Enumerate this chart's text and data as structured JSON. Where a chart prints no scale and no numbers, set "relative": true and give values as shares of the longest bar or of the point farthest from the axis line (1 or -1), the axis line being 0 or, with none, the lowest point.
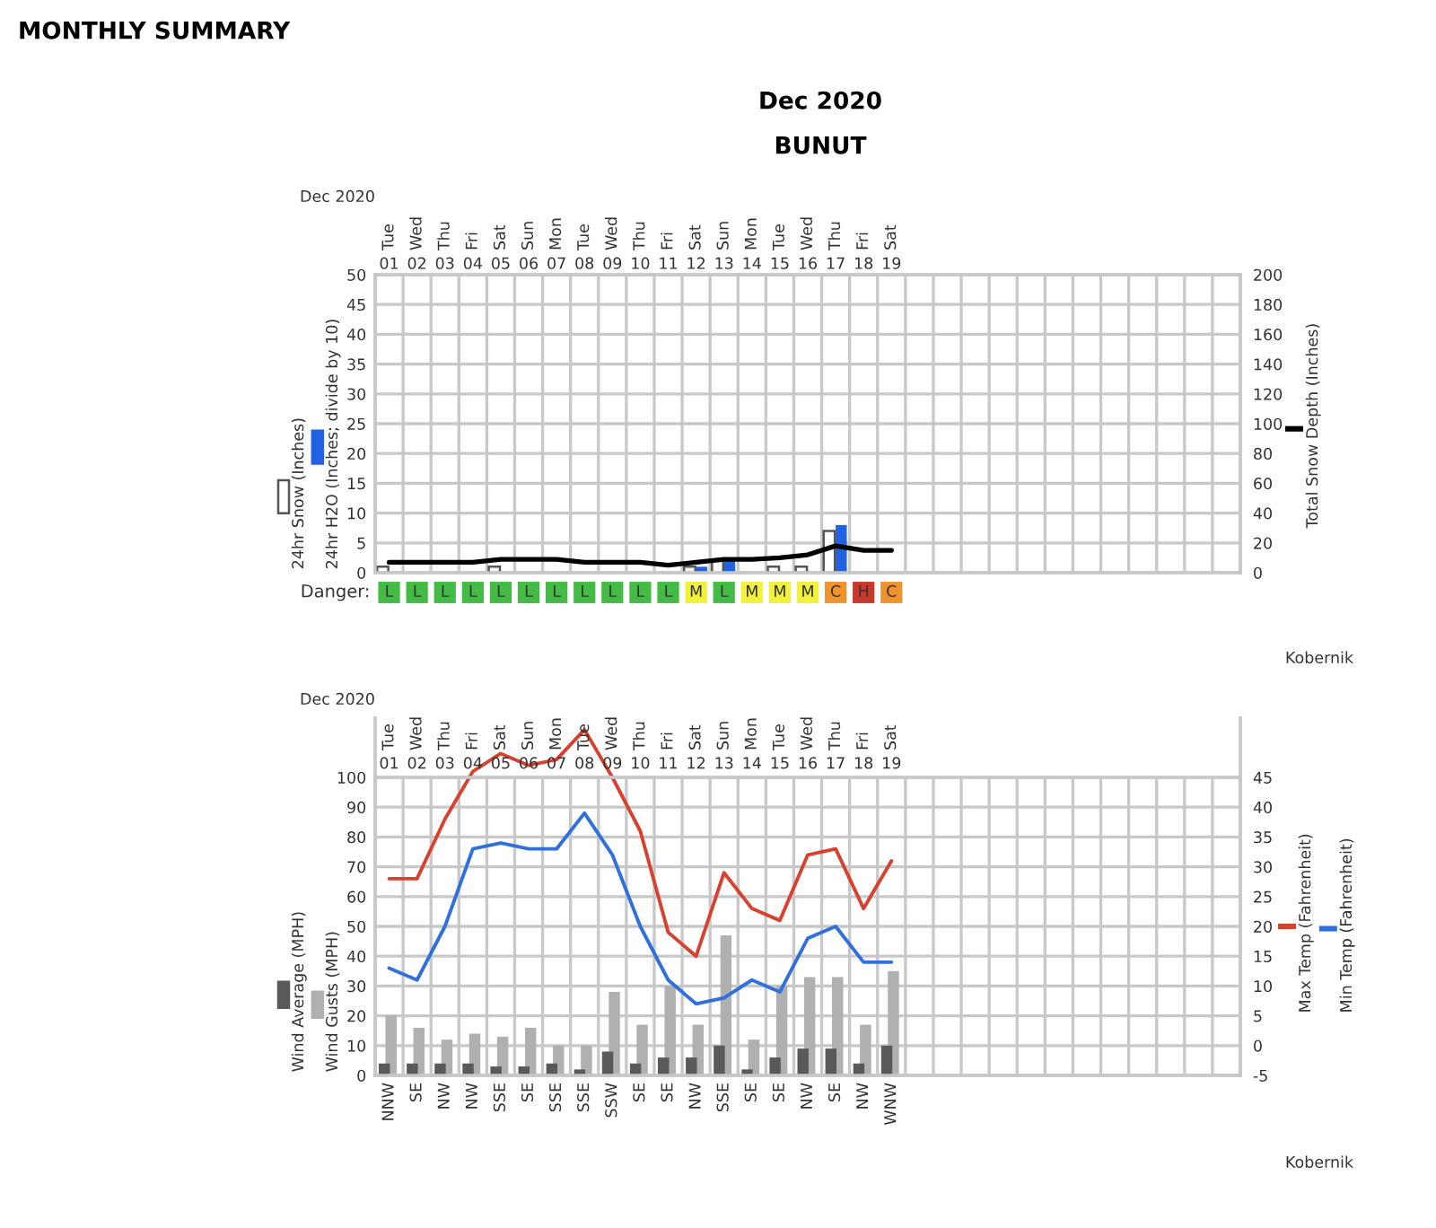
{
  "chart_data": [
    {
      "type": "bar",
      "title": "Dec 2020",
      "subtitle": "BUNUT",
      "categories": [
        "01",
        "02",
        "03",
        "04",
        "05",
        "06",
        "07",
        "08",
        "09",
        "10",
        "11",
        "12",
        "13",
        "14",
        "15",
        "16",
        "17",
        "18",
        "19",
        null,
        null,
        null,
        null,
        null,
        null,
        null,
        null,
        null,
        null,
        null,
        null
      ],
      "series": [
        {
          "name": "24hr Snow (Inches)",
          "type": "bar",
          "color": "#ffffff",
          "values": [
            1,
            0,
            0,
            0,
            1,
            0,
            0,
            0,
            0,
            0,
            0,
            1,
            2,
            0,
            1,
            1,
            7,
            0,
            0,
            null,
            null,
            null,
            null,
            null,
            null,
            null,
            null,
            null,
            null,
            null,
            null
          ]
        },
        {
          "name": "24hr H2O (Inches; divide by 10)",
          "type": "bar",
          "color": "#2162e3",
          "values": [
            0,
            0,
            0,
            0,
            0,
            0,
            0,
            0,
            0,
            0,
            0,
            1,
            2,
            0,
            0,
            0,
            8,
            0,
            0,
            null,
            null,
            null,
            null,
            null,
            null,
            null,
            null,
            null,
            null,
            null,
            null
          ]
        },
        {
          "name": "Total Snow Depth (Inches)",
          "type": "line",
          "axis": "y2",
          "color": "#000000",
          "values": [
            7,
            7,
            7,
            7,
            9,
            9,
            9,
            7,
            7,
            7,
            5,
            7,
            9,
            9,
            10,
            12,
            18,
            15,
            15,
            null,
            null,
            null,
            null,
            null,
            null,
            null,
            null,
            null,
            null,
            null,
            null
          ]
        }
      ],
      "ylim": [
        0,
        50
      ],
      "yticks": [
        0,
        5,
        10,
        15,
        20,
        25,
        30,
        35,
        40,
        45,
        50
      ],
      "y2lim": [
        0,
        200
      ],
      "y2ticks": [
        0,
        20,
        40,
        60,
        80,
        100,
        120,
        140,
        160,
        180,
        200
      ],
      "grid": true,
      "legend": "left",
      "annotations": [
        "MONTHLY SUMMARY",
        "Dec 2020",
        "Kobernik",
        "Tue",
        "Wed",
        "Thu",
        "Fri",
        "Sat",
        "Sun",
        "Mon",
        "Tue",
        "Wed",
        "Thu",
        "Fri",
        "Sat",
        "Sun",
        "Mon",
        "Tue",
        "Wed",
        "Thu",
        "Fri",
        "Sat"
      ]
    },
    {
      "type": "bar",
      "relative": true,
      "ylabel": "Danger:",
      "categories": [
        "L",
        "L",
        "L",
        "L",
        "L",
        "L",
        "L",
        "L",
        "L",
        "L",
        "L",
        "M",
        "L",
        "M",
        "M",
        "M",
        "C",
        "H",
        "C",
        null,
        null,
        null,
        null,
        null,
        null,
        null,
        null,
        null,
        null,
        null,
        null
      ],
      "values": [
        1,
        1,
        1,
        1,
        1,
        1,
        1,
        1,
        1,
        1,
        1,
        1,
        1,
        1,
        1,
        1,
        1,
        1,
        1,
        null,
        null,
        null,
        null,
        null,
        null,
        null,
        null,
        null,
        null,
        null,
        null
      ],
      "colors": [
        "#44bb44",
        "#44bb44",
        "#44bb44",
        "#44bb44",
        "#44bb44",
        "#44bb44",
        "#44bb44",
        "#44bb44",
        "#44bb44",
        "#44bb44",
        "#44bb44",
        "#f2f23a",
        "#44bb44",
        "#f2f23a",
        "#f2f23a",
        "#f2f23a",
        "#f0922e",
        "#c8392b",
        "#f0922e",
        null,
        null,
        null,
        null,
        null,
        null,
        null,
        null,
        null,
        null,
        null,
        null
      ]
    },
    {
      "type": "bar",
      "categories": [
        "01",
        "02",
        "03",
        "04",
        "05",
        "06",
        "07",
        "08",
        "09",
        "10",
        "11",
        "12",
        "13",
        "14",
        "15",
        "16",
        "17",
        "18",
        "19",
        null,
        null,
        null,
        null,
        null,
        null,
        null,
        null,
        null,
        null,
        null,
        null
      ],
      "series": [
        {
          "name": "Wind Average (MPH)",
          "type": "bar",
          "color": "#595959",
          "values": [
            4,
            4,
            4,
            4,
            3,
            3,
            4,
            2,
            8,
            4,
            6,
            6,
            10,
            2,
            6,
            9,
            9,
            4,
            10,
            null,
            null,
            null,
            null,
            null,
            null,
            null,
            null,
            null,
            null,
            null,
            null
          ]
        },
        {
          "name": "Wind Gusts (MPH)",
          "type": "bar",
          "color": "#b0b0b0",
          "values": [
            20,
            16,
            12,
            14,
            13,
            16,
            10,
            10,
            28,
            17,
            30,
            17,
            47,
            12,
            30,
            33,
            33,
            17,
            35,
            null,
            null,
            null,
            null,
            null,
            null,
            null,
            null,
            null,
            null,
            null,
            null
          ]
        },
        {
          "name": "Max Temp (Fahrenheit)",
          "type": "line",
          "axis": "y2",
          "color": "#d9412e",
          "values": [
            28,
            28,
            38,
            46,
            49,
            47,
            48,
            53,
            45,
            36,
            19,
            15,
            29,
            23,
            21,
            32,
            33,
            23,
            31,
            null,
            null,
            null,
            null,
            null,
            null,
            null,
            null,
            null,
            null,
            null,
            null
          ]
        },
        {
          "name": "Min Temp (Fahrenheit)",
          "type": "line",
          "axis": "y2",
          "color": "#2f6fde",
          "values": [
            13,
            11,
            20,
            33,
            34,
            33,
            33,
            39,
            32,
            20,
            11,
            7,
            8,
            11,
            9,
            18,
            20,
            14,
            14,
            null,
            null,
            null,
            null,
            null,
            null,
            null,
            null,
            null,
            null,
            null,
            null
          ]
        }
      ],
      "ylim": [
        0,
        120
      ],
      "yticks": [
        0,
        10,
        20,
        30,
        40,
        50,
        60,
        70,
        80,
        90,
        100
      ],
      "y2lim": [
        -5,
        55
      ],
      "y2ticks": [
        -5,
        0,
        5,
        10,
        15,
        20,
        25,
        30,
        35,
        40,
        45
      ],
      "grid": true,
      "legend": "left",
      "annotations": [
        "Dec 2020",
        "Kobernik",
        "Tue",
        "Wed",
        "Thu",
        "Fri",
        "Sat",
        "Sun",
        "Mon",
        "Tue",
        "Wed",
        "Thu",
        "Fri",
        "Sat",
        "Sun",
        "Mon",
        "Tue",
        "Wed",
        "Thu",
        "Fri",
        "Sat",
        "NNW",
        "SE",
        "NW",
        "NW",
        "SSE",
        "SE",
        "SSE",
        "SSE",
        "SSW",
        "SE",
        "SE",
        "NW",
        "SSE",
        "SE",
        "SE",
        "NW",
        "SE",
        "NW",
        "WNW"
      ]
    }
  ]
}
